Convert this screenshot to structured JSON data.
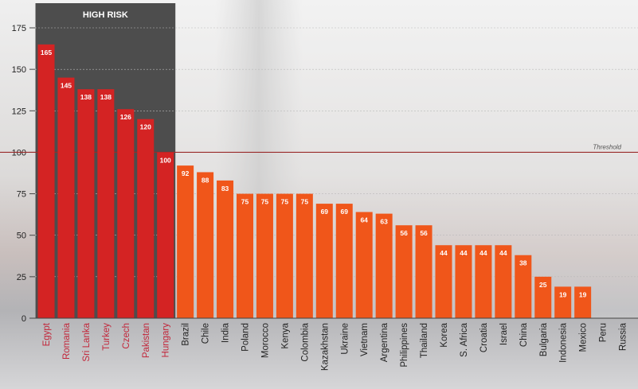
{
  "chart_data": {
    "type": "bar",
    "title": "",
    "xlabel": "",
    "ylabel": "",
    "ylim": [
      0,
      175
    ],
    "yticks": [
      0,
      25,
      50,
      75,
      100,
      125,
      150,
      175
    ],
    "grid": true,
    "categories": [
      "Egypt",
      "Romania",
      "Sri Lanka",
      "Turkey",
      "Czech",
      "Pakistan",
      "Hungary",
      "Brazil",
      "Chile",
      "India",
      "Poland",
      "Morocco",
      "Kenya",
      "Colombia",
      "Kazakhstan",
      "Ukraine",
      "Vietnam",
      "Argentina",
      "Philippines",
      "Thailand",
      "Korea",
      "S. Africa",
      "Croatia",
      "Israel",
      "China",
      "Bulgaria",
      "Indonesia",
      "Mexico",
      "Peru",
      "Russia"
    ],
    "values": [
      165,
      145,
      138,
      138,
      126,
      120,
      100,
      92,
      88,
      83,
      75,
      75,
      75,
      75,
      69,
      69,
      64,
      63,
      56,
      56,
      44,
      44,
      44,
      44,
      38,
      25,
      19,
      19,
      null,
      null
    ],
    "high_risk_count": 7,
    "high_risk_label": "HIGH RISK",
    "threshold": {
      "value": 100,
      "label": "Threshold"
    },
    "colors": {
      "high_risk_bar": "#d42323",
      "other_bar": "#f0561a",
      "high_risk_label": "#c2263a",
      "other_label": "#222222",
      "high_risk_band": "#4d4d4d",
      "threshold_line": "#9a2a2a"
    }
  }
}
